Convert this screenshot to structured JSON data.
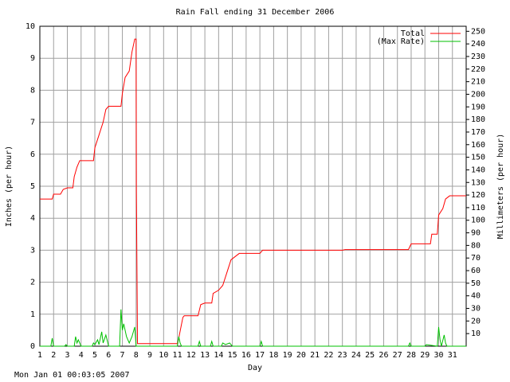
{
  "chart_data": {
    "type": "line",
    "title": "Rain Fall ending 31 December 2006",
    "xlabel": "Day",
    "ylabel": "Inches (per hour)",
    "y2label": "Millimeters (per hour)",
    "footer": "Mon Jan 01 00:03:05 2007",
    "xlim": [
      1,
      32
    ],
    "xticks": [
      1,
      2,
      3,
      4,
      5,
      6,
      7,
      8,
      9,
      10,
      11,
      12,
      13,
      14,
      15,
      16,
      17,
      18,
      19,
      20,
      21,
      22,
      23,
      24,
      25,
      26,
      27,
      28,
      29,
      30,
      31
    ],
    "ylim": [
      0,
      10
    ],
    "yticks": [
      0,
      1,
      2,
      3,
      4,
      5,
      6,
      7,
      8,
      9,
      10
    ],
    "y2lim": [
      0,
      254
    ],
    "y2ticks": [
      10,
      20,
      30,
      40,
      50,
      60,
      70,
      80,
      90,
      100,
      110,
      120,
      130,
      140,
      150,
      160,
      170,
      180,
      190,
      200,
      210,
      220,
      230,
      240,
      250
    ],
    "grid": true,
    "legend": "upper right",
    "series": [
      {
        "name": "Total",
        "color": "#ff0000",
        "x": [
          1.0,
          1.9,
          2.0,
          2.5,
          2.7,
          3.0,
          3.4,
          3.5,
          3.7,
          3.9,
          4.9,
          5.0,
          5.3,
          5.6,
          5.8,
          6.0,
          6.9,
          7.0,
          7.2,
          7.5,
          7.7,
          7.9,
          8.0,
          8.02,
          8.1,
          11.0,
          11.1,
          11.4,
          11.5,
          12.5,
          12.7,
          13.0,
          13.5,
          13.6,
          14.0,
          14.3,
          14.6,
          14.9,
          15.2,
          15.5,
          17.0,
          17.2,
          23.0,
          23.2,
          27.8,
          28.0,
          29.4,
          29.5,
          29.9,
          30.0,
          30.3,
          30.5,
          30.8,
          32.0
        ],
        "values": [
          4.6,
          4.6,
          4.75,
          4.75,
          4.9,
          4.95,
          4.95,
          5.3,
          5.6,
          5.8,
          5.8,
          6.2,
          6.6,
          7.0,
          7.4,
          7.5,
          7.5,
          7.9,
          8.4,
          8.6,
          9.2,
          9.6,
          9.6,
          4.9,
          0.08,
          0.08,
          0.25,
          0.9,
          0.95,
          0.95,
          1.3,
          1.35,
          1.35,
          1.65,
          1.75,
          1.9,
          2.3,
          2.7,
          2.8,
          2.9,
          2.9,
          3.0,
          3.0,
          3.02,
          3.02,
          3.2,
          3.2,
          3.5,
          3.5,
          4.1,
          4.3,
          4.6,
          4.7,
          4.7
        ]
      },
      {
        "name": "(Max Rate)",
        "color": "#00c000",
        "x": [
          1.0,
          1.8,
          1.9,
          2.0,
          2.8,
          2.9,
          3.0,
          3.5,
          3.6,
          3.7,
          3.8,
          4.0,
          4.8,
          4.9,
          5.0,
          5.2,
          5.3,
          5.5,
          5.6,
          5.8,
          6.0,
          6.8,
          6.9,
          7.0,
          7.1,
          7.3,
          7.5,
          7.7,
          7.9,
          8.0,
          11.0,
          11.1,
          11.2,
          11.3,
          12.5,
          12.6,
          12.7,
          13.4,
          13.5,
          13.6,
          14.2,
          14.3,
          14.5,
          14.8,
          15.0,
          17.0,
          17.1,
          17.2,
          27.8,
          27.9,
          28.0,
          29.0,
          29.1,
          29.9,
          30.0,
          30.1,
          30.2,
          30.4,
          30.5,
          30.6,
          32.0
        ],
        "values": [
          0,
          0,
          0.25,
          0,
          0,
          0.05,
          0,
          0,
          0.3,
          0.1,
          0.2,
          0,
          0,
          0.1,
          0.05,
          0.2,
          0.05,
          0.45,
          0.1,
          0.35,
          0,
          0,
          1.15,
          0.5,
          0.7,
          0.3,
          0.1,
          0.3,
          0.6,
          0,
          0,
          0.3,
          0.1,
          0,
          0,
          0.15,
          0,
          0,
          0.15,
          0,
          0,
          0.1,
          0.05,
          0.1,
          0,
          0,
          0.15,
          0,
          0,
          0.1,
          0,
          0,
          0.05,
          0,
          0.6,
          0.2,
          0,
          0.35,
          0.1,
          0,
          0
        ]
      }
    ]
  }
}
